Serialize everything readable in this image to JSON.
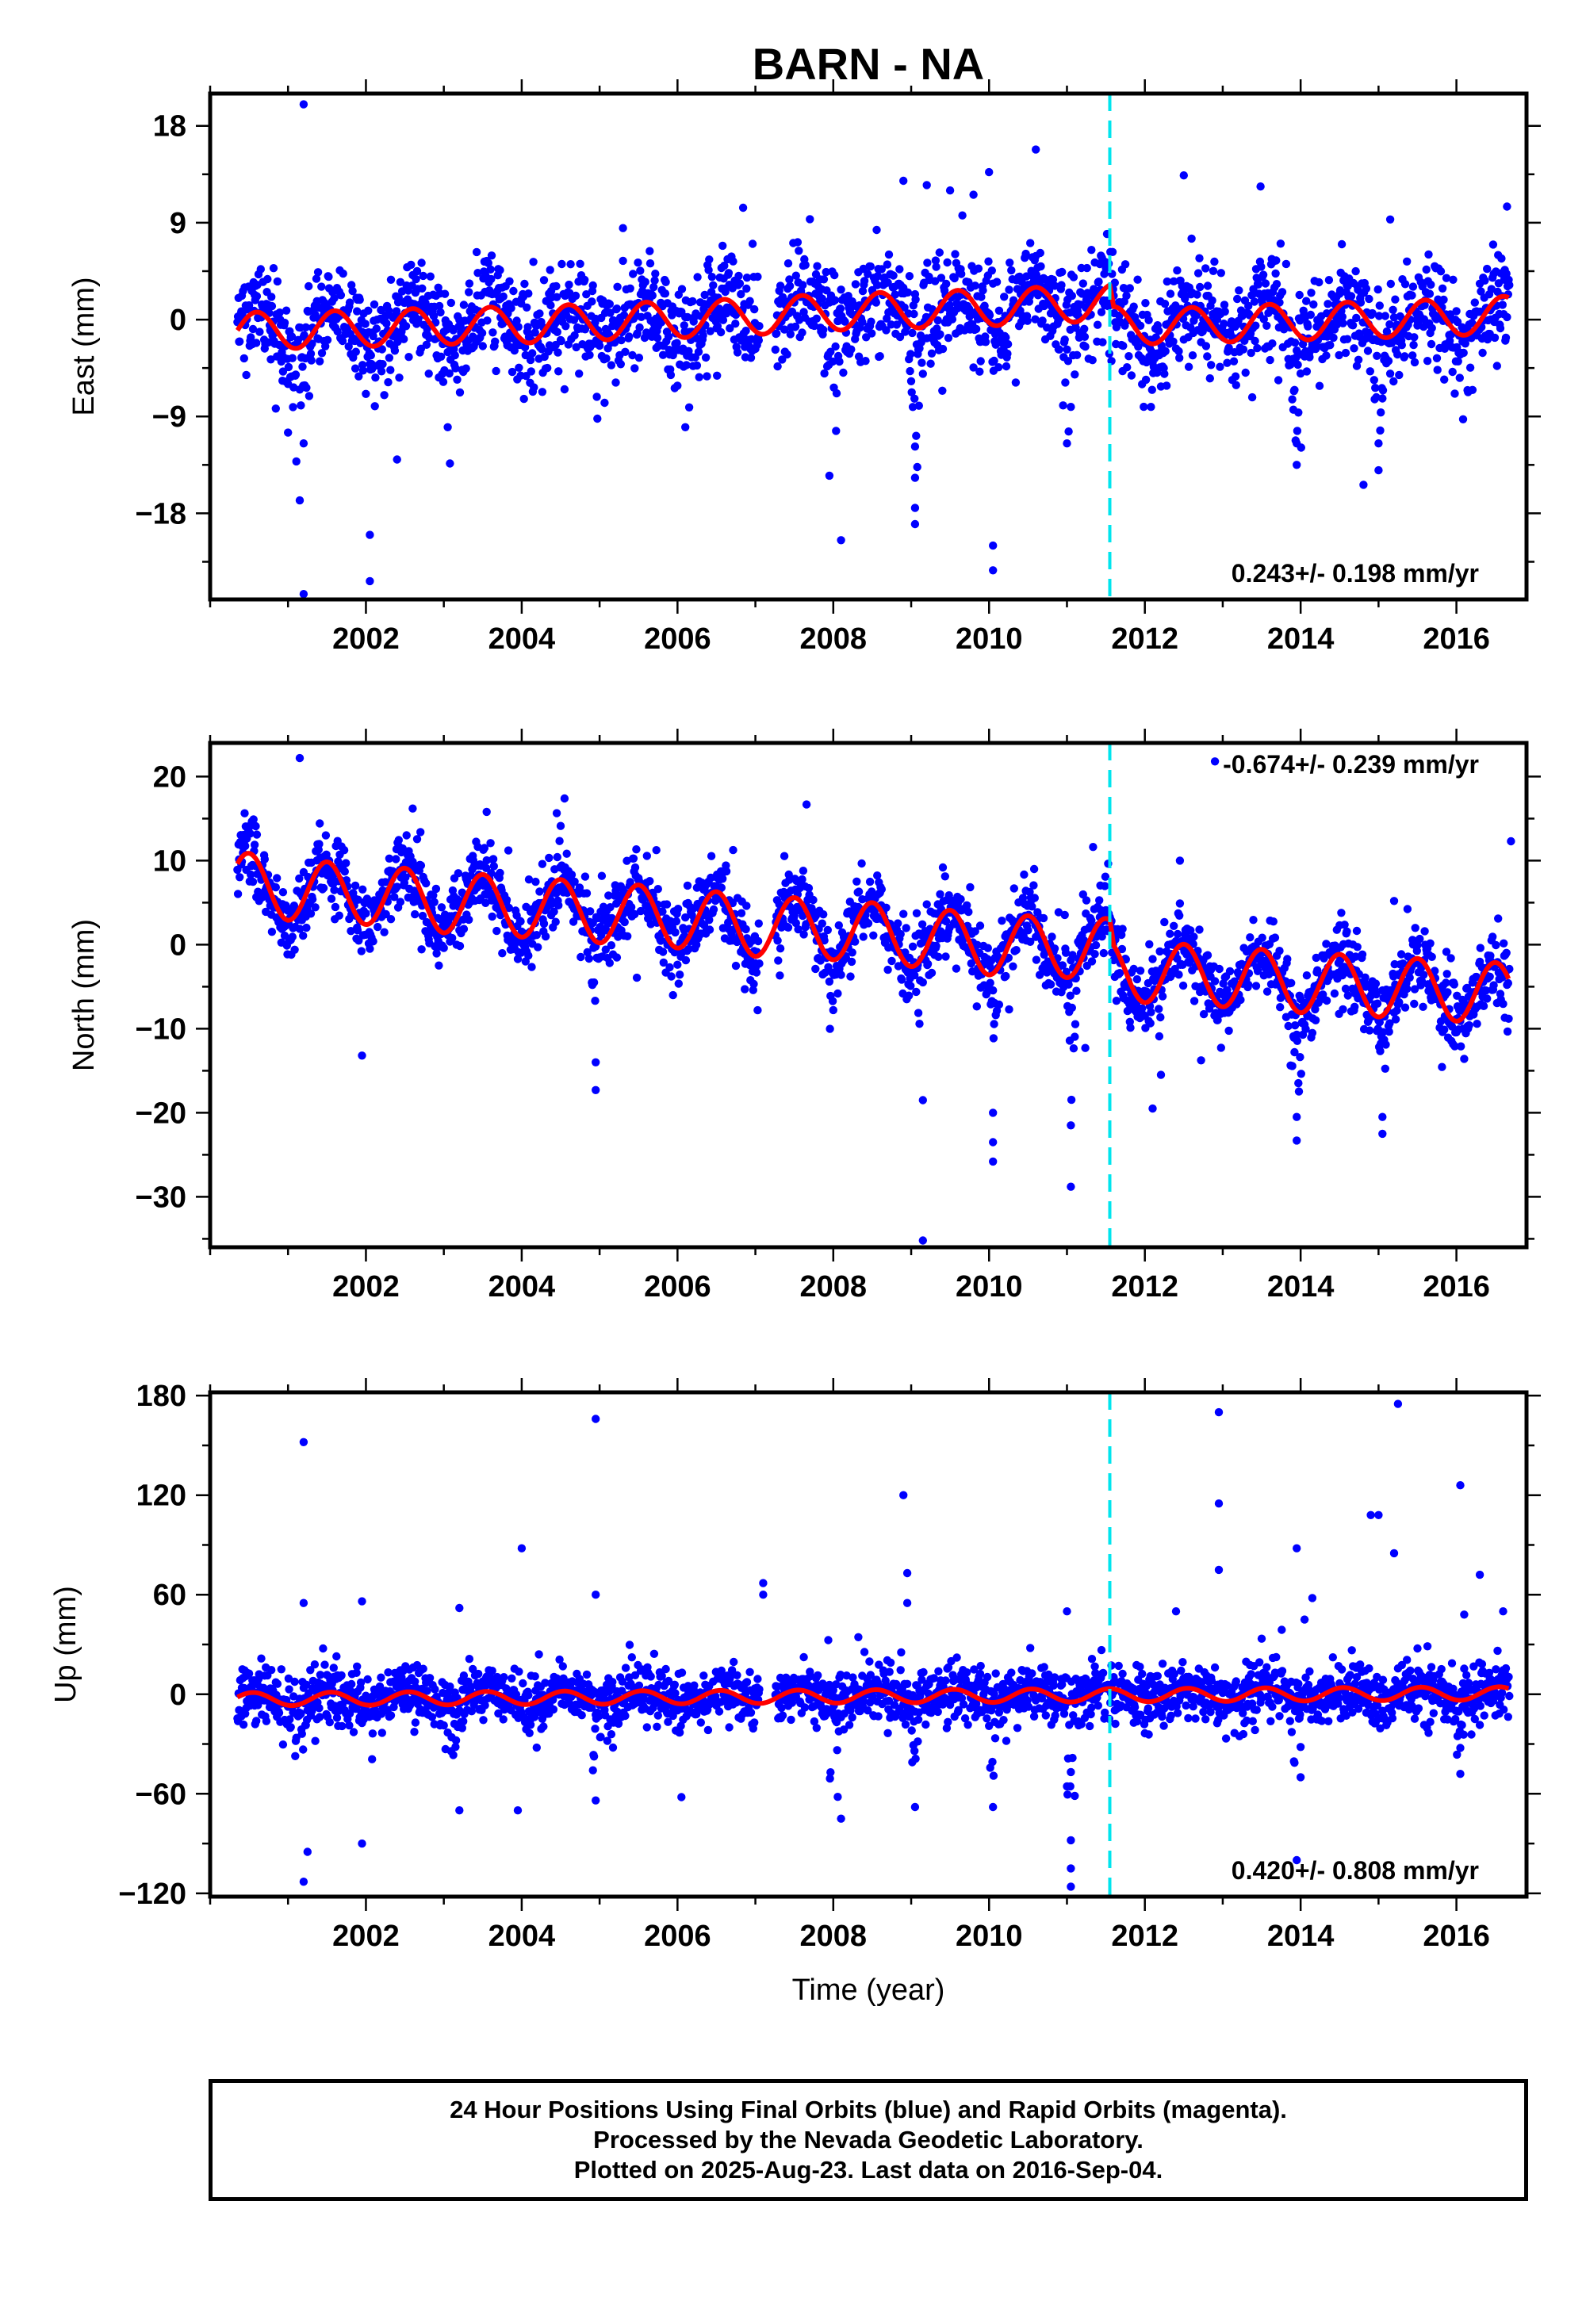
{
  "title": "BARN - NA",
  "xlabel": "Time (year)",
  "footer": {
    "line1": "24 Hour Positions Using Final Orbits (blue) and Rapid Orbits (magenta).",
    "line2": "Processed by the Nevada Geodetic Laboratory.",
    "line3": "Plotted on 2025-Aug-23. Last data on 2016-Sep-04."
  },
  "colors": {
    "data": "#0000ff",
    "model": "#ff0000",
    "break_line": "#00e5ee",
    "frame": "#000000"
  },
  "chart_data": [
    {
      "type": "scatter",
      "component": "east",
      "ylabel": "East (mm)",
      "xlim": [
        2000.0,
        2016.9
      ],
      "ylim": [
        -26,
        21
      ],
      "xticks": [
        2002,
        2004,
        2006,
        2008,
        2010,
        2012,
        2014,
        2016
      ],
      "yticks": [
        18,
        9,
        0,
        -9,
        -18
      ],
      "ytick_labels": [
        "18",
        "9",
        "0",
        "−9",
        "−18"
      ],
      "rate_text": "0.243+/- 0.198 mm/yr",
      "rate_position": "bottom-right",
      "equipment_change_year": 2011.55,
      "data_start": 2000.35,
      "data_end": 2016.68,
      "scatter_sd": 2.4,
      "model": {
        "knots_x": [
          2000.35,
          2001.0,
          2002.0,
          2003.0,
          2004.0,
          2005.0,
          2006.0,
          2007.0,
          2008.0,
          2009.0,
          2010.0,
          2011.55,
          2011.6,
          2012.5,
          2013.0,
          2014.0,
          2015.0,
          2016.0,
          2016.68
        ],
        "knots_y": [
          -1.0,
          -1.0,
          -0.8,
          -0.6,
          -0.5,
          -0.2,
          0.0,
          0.3,
          0.7,
          0.9,
          1.1,
          1.6,
          -0.5,
          -0.6,
          -0.4,
          -0.2,
          0.0,
          0.2,
          0.5
        ],
        "annual_amp": 1.7,
        "annual_phase_peak": 0.6
      },
      "outliers": [
        {
          "x": 2001.2,
          "y": 20.0
        },
        {
          "x": 2001.2,
          "y": -25.5
        },
        {
          "x": 2001.15,
          "y": -16.8
        },
        {
          "x": 2002.05,
          "y": -24.3
        },
        {
          "x": 2002.05,
          "y": -20.0
        },
        {
          "x": 2002.4,
          "y": -13.0
        },
        {
          "x": 2001.2,
          "y": -11.5
        },
        {
          "x": 2008.1,
          "y": -20.5
        },
        {
          "x": 2007.95,
          "y": -14.5
        },
        {
          "x": 2009.05,
          "y": -19.0
        },
        {
          "x": 2009.05,
          "y": -17.5
        },
        {
          "x": 2009.05,
          "y": -14.7
        },
        {
          "x": 2009.05,
          "y": -11.8
        },
        {
          "x": 2010.05,
          "y": -23.3
        },
        {
          "x": 2010.05,
          "y": -21.0
        },
        {
          "x": 2009.2,
          "y": 12.5
        },
        {
          "x": 2009.5,
          "y": 12.0
        },
        {
          "x": 2009.8,
          "y": 11.6
        },
        {
          "x": 2010.0,
          "y": 13.7
        },
        {
          "x": 2010.6,
          "y": 15.8
        },
        {
          "x": 2008.9,
          "y": 12.9
        },
        {
          "x": 2012.5,
          "y": 13.4
        },
        {
          "x": 2013.95,
          "y": -13.5
        },
        {
          "x": 2013.95,
          "y": -11.5
        },
        {
          "x": 2015.0,
          "y": -14.0
        },
        {
          "x": 2015.0,
          "y": -11.5
        },
        {
          "x": 2016.65,
          "y": 10.5
        },
        {
          "x": 2011.0,
          "y": -11.5
        },
        {
          "x": 2003.05,
          "y": -10.0
        },
        {
          "x": 2001.0,
          "y": -10.5
        },
        {
          "x": 2005.3,
          "y": 8.5
        },
        {
          "x": 2006.1,
          "y": -10.0
        },
        {
          "x": 2015.15,
          "y": 9.3
        }
      ],
      "dips": [
        {
          "x": 2001.1,
          "depth": -6
        },
        {
          "x": 2003.05,
          "depth": -6
        },
        {
          "x": 2008.0,
          "depth": -7
        },
        {
          "x": 2009.05,
          "depth": -8
        },
        {
          "x": 2013.95,
          "depth": -9
        },
        {
          "x": 2015.0,
          "depth": -7
        },
        {
          "x": 2012.05,
          "depth": -5
        },
        {
          "x": 2011.0,
          "depth": -7
        }
      ]
    },
    {
      "type": "scatter",
      "component": "north",
      "ylabel": "North (mm)",
      "xlim": [
        2000.0,
        2016.9
      ],
      "ylim": [
        -36,
        24
      ],
      "xticks": [
        2002,
        2004,
        2006,
        2008,
        2010,
        2012,
        2014,
        2016
      ],
      "yticks": [
        20,
        10,
        0,
        -10,
        -20,
        -30
      ],
      "ytick_labels": [
        "20",
        "10",
        "0",
        "−10",
        "−20",
        "−30"
      ],
      "rate_text": "-0.674+/- 0.239 mm/yr",
      "rate_position": "top-right",
      "equipment_change_year": 2011.55,
      "data_start": 2000.35,
      "data_end": 2016.68,
      "scatter_sd": 2.2,
      "model": {
        "knots_x": [
          2000.35,
          2001.0,
          2002.0,
          2003.0,
          2004.0,
          2005.0,
          2006.0,
          2007.0,
          2008.0,
          2009.0,
          2010.0,
          2011.55,
          2011.6,
          2012.0,
          2013.0,
          2014.0,
          2015.0,
          2016.0,
          2016.68
        ],
        "knots_y": [
          7.5,
          6.5,
          6.0,
          5.0,
          4.5,
          3.8,
          3.2,
          2.2,
          1.8,
          1.0,
          0.0,
          -0.5,
          -3.0,
          -3.3,
          -3.8,
          -4.5,
          -5.0,
          -5.5,
          -5.8
        ],
        "annual_amp": 3.6,
        "annual_phase_peak": 0.5
      },
      "outliers": [
        {
          "x": 2001.15,
          "y": 22.2
        },
        {
          "x": 2001.95,
          "y": -13.2
        },
        {
          "x": 2004.95,
          "y": -17.3
        },
        {
          "x": 2004.95,
          "y": -14.0
        },
        {
          "x": 2009.15,
          "y": -18.5
        },
        {
          "x": 2009.15,
          "y": -35.2
        },
        {
          "x": 2010.05,
          "y": -25.8
        },
        {
          "x": 2010.05,
          "y": -23.5
        },
        {
          "x": 2010.05,
          "y": -20.0
        },
        {
          "x": 2011.05,
          "y": -28.8
        },
        {
          "x": 2011.05,
          "y": -21.5
        },
        {
          "x": 2012.1,
          "y": -19.5
        },
        {
          "x": 2012.45,
          "y": 10.0
        },
        {
          "x": 2013.95,
          "y": -23.3
        },
        {
          "x": 2013.95,
          "y": -20.5
        },
        {
          "x": 2015.05,
          "y": -22.5
        },
        {
          "x": 2015.05,
          "y": -20.5
        },
        {
          "x": 2016.7,
          "y": 12.3
        },
        {
          "x": 2012.9,
          "y": 21.8
        },
        {
          "x": 2015.2,
          "y": 5.2
        },
        {
          "x": 2003.55,
          "y": 15.8
        },
        {
          "x": 2004.55,
          "y": 17.4
        },
        {
          "x": 2002.6,
          "y": 16.2
        }
      ],
      "dips": [
        {
          "x": 2004.95,
          "depth": -8
        },
        {
          "x": 2009.1,
          "depth": -6
        },
        {
          "x": 2010.05,
          "depth": -10
        },
        {
          "x": 2011.05,
          "depth": -9
        },
        {
          "x": 2013.95,
          "depth": -9
        },
        {
          "x": 2015.05,
          "depth": -8
        },
        {
          "x": 2008.0,
          "depth": -6
        },
        {
          "x": 2016.6,
          "depth": -5
        }
      ]
    },
    {
      "type": "scatter",
      "component": "up",
      "ylabel": "Up (mm)",
      "xlim": [
        2000.0,
        2016.9
      ],
      "ylim": [
        -122,
        182
      ],
      "xticks": [
        2002,
        2004,
        2006,
        2008,
        2010,
        2012,
        2014,
        2016
      ],
      "yticks": [
        180,
        120,
        60,
        0,
        -60,
        -120
      ],
      "ytick_labels": [
        "180",
        "120",
        "60",
        "0",
        "−60",
        "−120"
      ],
      "rate_text": "0.420+/- 0.808 mm/yr",
      "rate_position": "bottom-right",
      "equipment_change_year": 2011.55,
      "data_start": 2000.35,
      "data_end": 2016.68,
      "scatter_sd": 8.5,
      "model": {
        "knots_x": [
          2000.35,
          2016.68
        ],
        "knots_y": [
          -3.0,
          0.5
        ],
        "annual_amp": 4.0,
        "annual_phase_peak": 0.55
      },
      "outliers": [
        {
          "x": 2001.2,
          "y": 152
        },
        {
          "x": 2001.2,
          "y": 55
        },
        {
          "x": 2001.25,
          "y": -95
        },
        {
          "x": 2001.2,
          "y": -113
        },
        {
          "x": 2001.95,
          "y": -90
        },
        {
          "x": 2001.95,
          "y": 56
        },
        {
          "x": 2004.0,
          "y": 88
        },
        {
          "x": 2003.95,
          "y": -70
        },
        {
          "x": 2004.95,
          "y": 166
        },
        {
          "x": 2004.95,
          "y": 60
        },
        {
          "x": 2004.95,
          "y": -64
        },
        {
          "x": 2003.2,
          "y": 52
        },
        {
          "x": 2003.2,
          "y": -70
        },
        {
          "x": 2006.05,
          "y": -62
        },
        {
          "x": 2007.1,
          "y": 67
        },
        {
          "x": 2007.1,
          "y": 60
        },
        {
          "x": 2008.1,
          "y": -75
        },
        {
          "x": 2008.9,
          "y": 120
        },
        {
          "x": 2008.95,
          "y": 73
        },
        {
          "x": 2008.95,
          "y": 55
        },
        {
          "x": 2009.05,
          "y": -68
        },
        {
          "x": 2010.05,
          "y": -68
        },
        {
          "x": 2011.05,
          "y": -116
        },
        {
          "x": 2011.05,
          "y": -105
        },
        {
          "x": 2011.05,
          "y": -88
        },
        {
          "x": 2011.0,
          "y": 50
        },
        {
          "x": 2012.95,
          "y": 170
        },
        {
          "x": 2012.95,
          "y": 115
        },
        {
          "x": 2012.95,
          "y": 75
        },
        {
          "x": 2013.95,
          "y": 88
        },
        {
          "x": 2013.95,
          "y": -100
        },
        {
          "x": 2014.0,
          "y": -50
        },
        {
          "x": 2014.15,
          "y": 58
        },
        {
          "x": 2014.9,
          "y": 108
        },
        {
          "x": 2015.0,
          "y": 108
        },
        {
          "x": 2015.2,
          "y": 85
        },
        {
          "x": 2015.25,
          "y": 175
        },
        {
          "x": 2016.05,
          "y": 126
        },
        {
          "x": 2016.3,
          "y": 72
        },
        {
          "x": 2016.05,
          "y": -48
        },
        {
          "x": 2012.4,
          "y": 50
        },
        {
          "x": 2014.05,
          "y": 45
        },
        {
          "x": 2016.6,
          "y": 50
        },
        {
          "x": 2016.1,
          "y": 48
        }
      ],
      "dips": [
        {
          "x": 2001.15,
          "depth": -35
        },
        {
          "x": 2003.15,
          "depth": -30
        },
        {
          "x": 2004.95,
          "depth": -40
        },
        {
          "x": 2008.0,
          "depth": -45
        },
        {
          "x": 2009.05,
          "depth": -45
        },
        {
          "x": 2010.05,
          "depth": -35
        },
        {
          "x": 2011.05,
          "depth": -60
        },
        {
          "x": 2013.95,
          "depth": -35
        },
        {
          "x": 2016.05,
          "depth": -30
        }
      ]
    }
  ]
}
